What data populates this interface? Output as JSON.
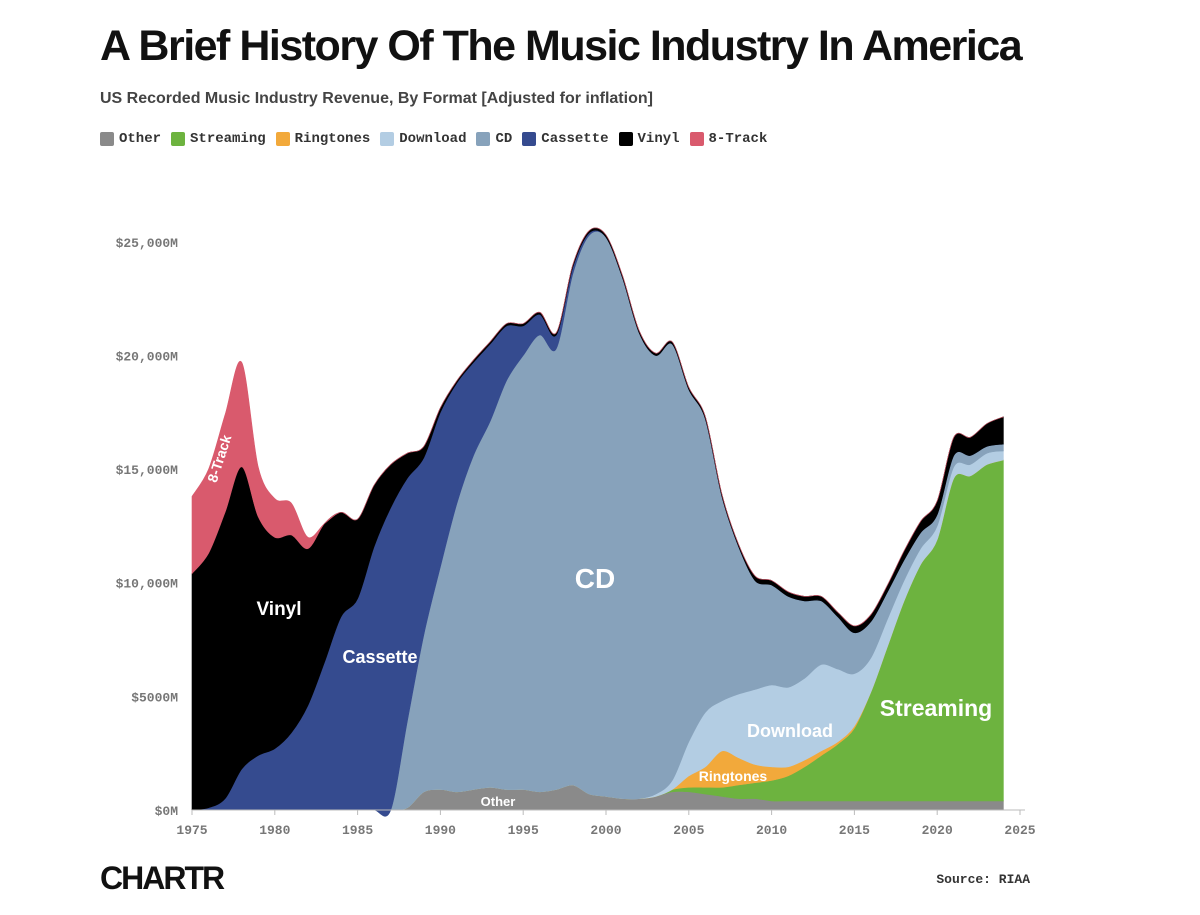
{
  "chart_data": {
    "type": "area",
    "stacked": true,
    "title": "A Brief History Of The Music Industry In America",
    "subtitle": "US Recorded Music Industry Revenue, By Format [Adjusted for inflation]",
    "source": "Source: RIAA",
    "brand": "CHARTR",
    "xlim": [
      1975,
      2025
    ],
    "ylim": [
      0,
      27500
    ],
    "x_ticks": [
      1975,
      1980,
      1985,
      1990,
      1995,
      2000,
      2005,
      2010,
      2015,
      2020,
      2025
    ],
    "y_ticks": [
      {
        "value": 0,
        "label": "$0M"
      },
      {
        "value": 5000,
        "label": "$5000M"
      },
      {
        "value": 10000,
        "label": "$10,000M"
      },
      {
        "value": 15000,
        "label": "$15,000M"
      },
      {
        "value": 20000,
        "label": "$20,000M"
      },
      {
        "value": 25000,
        "label": "$25,000M"
      }
    ],
    "legend_position": "top-left",
    "grid": false,
    "years": [
      1975,
      1976,
      1977,
      1978,
      1979,
      1980,
      1981,
      1982,
      1983,
      1984,
      1985,
      1986,
      1987,
      1988,
      1989,
      1990,
      1991,
      1992,
      1993,
      1994,
      1995,
      1996,
      1997,
      1998,
      1999,
      2000,
      2001,
      2002,
      2003,
      2004,
      2005,
      2006,
      2007,
      2008,
      2009,
      2010,
      2011,
      2012,
      2013,
      2014,
      2015,
      2016,
      2017,
      2018,
      2019,
      2020,
      2021,
      2022,
      2023,
      2024
    ],
    "series": [
      {
        "name": "Other",
        "color": "#8a8a8a",
        "label": "Other",
        "label_color": "#ffffff",
        "values": [
          0,
          0,
          0,
          0,
          0,
          0,
          0,
          0,
          0,
          0,
          0,
          0,
          0,
          100,
          800,
          900,
          800,
          900,
          1000,
          900,
          900,
          800,
          900,
          1100,
          700,
          600,
          500,
          500,
          600,
          800,
          800,
          700,
          600,
          500,
          500,
          400,
          400,
          400,
          400,
          400,
          400,
          400,
          400,
          400,
          400,
          400,
          400,
          400,
          400,
          400
        ]
      },
      {
        "name": "Streaming",
        "color": "#6db33f",
        "label": "Streaming",
        "label_color": "#ffffff",
        "values": [
          0,
          0,
          0,
          0,
          0,
          0,
          0,
          0,
          0,
          0,
          0,
          0,
          0,
          0,
          0,
          0,
          0,
          0,
          0,
          0,
          0,
          0,
          0,
          0,
          0,
          0,
          0,
          0,
          0,
          100,
          200,
          300,
          400,
          600,
          700,
          900,
          1100,
          1500,
          2000,
          2500,
          3200,
          4800,
          6800,
          8800,
          10400,
          11500,
          14200,
          14300,
          14800,
          15000
        ]
      },
      {
        "name": "Ringtones",
        "color": "#f2a93b",
        "label": "Ringtones",
        "label_color": "#ffffff",
        "values": [
          0,
          0,
          0,
          0,
          0,
          0,
          0,
          0,
          0,
          0,
          0,
          0,
          0,
          0,
          0,
          0,
          0,
          0,
          0,
          0,
          0,
          0,
          0,
          0,
          0,
          0,
          0,
          0,
          0,
          0,
          500,
          900,
          1600,
          1200,
          800,
          600,
          400,
          300,
          200,
          100,
          100,
          0,
          0,
          0,
          0,
          0,
          0,
          0,
          0,
          0
        ]
      },
      {
        "name": "Download",
        "color": "#b3cde3",
        "label": "Download",
        "label_color": "#ffffff",
        "values": [
          0,
          0,
          0,
          0,
          0,
          0,
          0,
          0,
          0,
          0,
          0,
          0,
          0,
          0,
          0,
          0,
          0,
          0,
          0,
          0,
          0,
          0,
          0,
          0,
          0,
          0,
          0,
          0,
          100,
          400,
          1500,
          2400,
          2200,
          2800,
          3300,
          3600,
          3500,
          3600,
          3800,
          3200,
          2300,
          1500,
          1200,
          900,
          700,
          600,
          500,
          500,
          500,
          400
        ]
      },
      {
        "name": "CD",
        "color": "#87a2bb",
        "label": "CD",
        "label_color": "#ffffff",
        "values": [
          0,
          0,
          0,
          0,
          0,
          0,
          0,
          0,
          0,
          0,
          0,
          0,
          0,
          3800,
          6900,
          9800,
          12700,
          14700,
          16100,
          18000,
          19100,
          20100,
          19400,
          22500,
          24600,
          24600,
          22900,
          20500,
          19300,
          19200,
          15500,
          12900,
          9000,
          6500,
          4800,
          4400,
          4000,
          3400,
          2800,
          2300,
          1800,
          1600,
          1200,
          900,
          700,
          500,
          500,
          400,
          300,
          300
        ]
      },
      {
        "name": "Cassette",
        "color": "#354b8f",
        "label": "Cassette",
        "label_color": "#ffffff",
        "values": [
          0,
          100,
          500,
          1800,
          2400,
          2700,
          3400,
          4600,
          6500,
          8500,
          9300,
          11600,
          13300,
          10700,
          7800,
          6800,
          5300,
          4100,
          3400,
          2400,
          1300,
          900,
          600,
          300,
          100,
          0,
          0,
          0,
          0,
          0,
          0,
          0,
          0,
          0,
          0,
          0,
          0,
          0,
          0,
          0,
          0,
          0,
          0,
          0,
          0,
          0,
          0,
          0,
          0,
          0
        ]
      },
      {
        "name": "Vinyl",
        "color": "#000000",
        "label": "Vinyl",
        "label_color": "#ffffff",
        "values": [
          10400,
          11200,
          12600,
          13300,
          10500,
          9300,
          8700,
          6900,
          6100,
          4600,
          3500,
          2700,
          1900,
          1100,
          500,
          200,
          100,
          100,
          100,
          100,
          100,
          100,
          100,
          100,
          100,
          100,
          100,
          100,
          100,
          100,
          100,
          100,
          100,
          100,
          200,
          200,
          200,
          200,
          200,
          200,
          300,
          300,
          300,
          400,
          500,
          600,
          800,
          800,
          1000,
          1200
        ]
      },
      {
        "name": "8-Track",
        "color": "#d95a6d",
        "label": "8-Track",
        "label_color": "#ffffff",
        "values": [
          3400,
          3700,
          4300,
          4600,
          2200,
          1700,
          1400,
          500,
          0,
          0,
          0,
          0,
          0,
          0,
          0,
          0,
          0,
          0,
          0,
          0,
          0,
          0,
          0,
          0,
          0,
          0,
          0,
          0,
          0,
          0,
          0,
          0,
          0,
          0,
          0,
          0,
          0,
          0,
          0,
          0,
          0,
          0,
          0,
          0,
          0,
          0,
          0,
          0,
          0,
          0
        ]
      }
    ]
  }
}
